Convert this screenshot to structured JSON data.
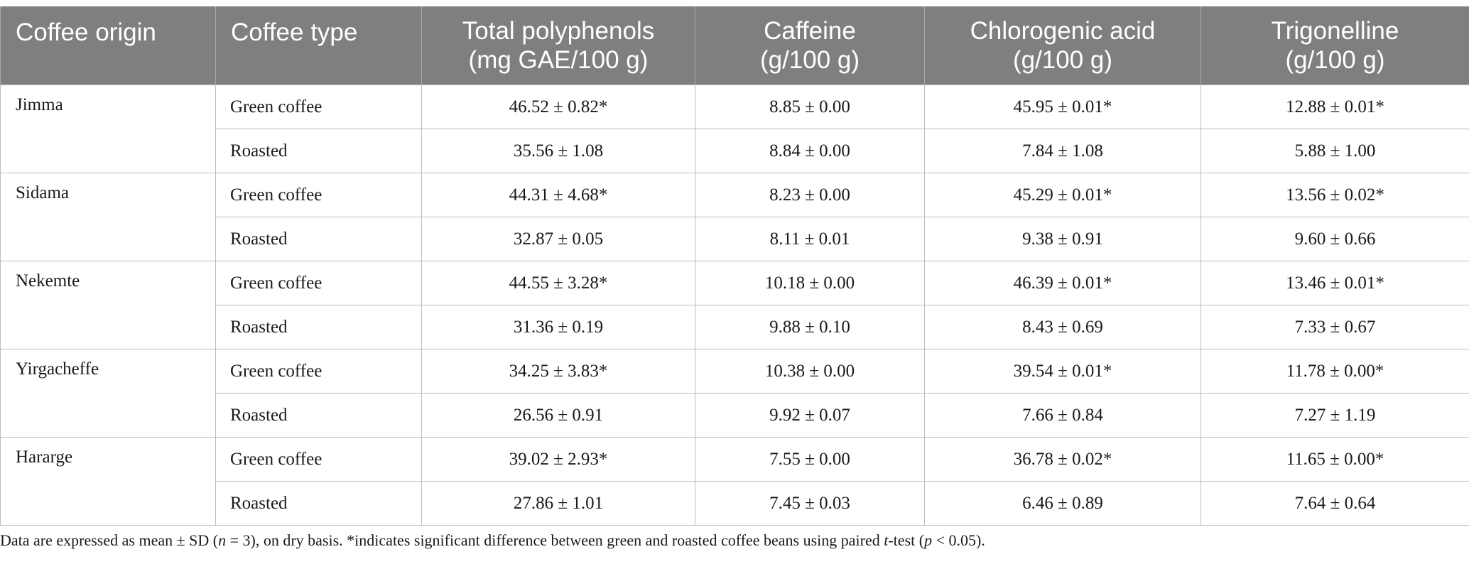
{
  "table": {
    "headers": [
      {
        "line1": "Coffee origin",
        "line2": ""
      },
      {
        "line1": "Coffee type",
        "line2": ""
      },
      {
        "line1": "Total polyphenols",
        "line2": "(mg GAE/100 g)"
      },
      {
        "line1": "Caffeine",
        "line2": "(g/100 g)"
      },
      {
        "line1": "Chlorogenic acid",
        "line2": "(g/100 g)"
      },
      {
        "line1": "Trigonelline",
        "line2": "(g/100 g)"
      }
    ],
    "groups": [
      {
        "origin": "Jimma",
        "rows": [
          {
            "type": "Green coffee",
            "polyphenols": "46.52 ± 0.82*",
            "caffeine": "8.85 ± 0.00",
            "chlorogenic": "45.95 ± 0.01*",
            "trigonelline": "12.88 ± 0.01*"
          },
          {
            "type": "Roasted",
            "polyphenols": "35.56 ± 1.08",
            "caffeine": "8.84 ± 0.00",
            "chlorogenic": "7.84 ± 1.08",
            "trigonelline": "5.88 ± 1.00"
          }
        ]
      },
      {
        "origin": "Sidama",
        "rows": [
          {
            "type": "Green coffee",
            "polyphenols": "44.31 ± 4.68*",
            "caffeine": "8.23 ± 0.00",
            "chlorogenic": "45.29 ± 0.01*",
            "trigonelline": "13.56 ± 0.02*"
          },
          {
            "type": "Roasted",
            "polyphenols": "32.87 ± 0.05",
            "caffeine": "8.11 ± 0.01",
            "chlorogenic": "9.38 ± 0.91",
            "trigonelline": "9.60 ± 0.66"
          }
        ]
      },
      {
        "origin": "Nekemte",
        "rows": [
          {
            "type": "Green coffee",
            "polyphenols": "44.55 ± 3.28*",
            "caffeine": "10.18 ± 0.00",
            "chlorogenic": "46.39 ± 0.01*",
            "trigonelline": "13.46 ± 0.01*"
          },
          {
            "type": "Roasted",
            "polyphenols": "31.36 ± 0.19",
            "caffeine": "9.88 ± 0.10",
            "chlorogenic": "8.43 ± 0.69",
            "trigonelline": "7.33 ± 0.67"
          }
        ]
      },
      {
        "origin": "Yirgacheffe",
        "rows": [
          {
            "type": "Green coffee",
            "polyphenols": "34.25 ± 3.83*",
            "caffeine": "10.38 ± 0.00",
            "chlorogenic": "39.54 ± 0.01*",
            "trigonelline": "11.78 ± 0.00*"
          },
          {
            "type": "Roasted",
            "polyphenols": "26.56 ± 0.91",
            "caffeine": "9.92 ± 0.07",
            "chlorogenic": "7.66 ± 0.84",
            "trigonelline": "7.27 ± 1.19"
          }
        ]
      },
      {
        "origin": "Hararge",
        "rows": [
          {
            "type": "Green coffee",
            "polyphenols": "39.02 ± 2.93*",
            "caffeine": "7.55 ± 0.00",
            "chlorogenic": "36.78 ± 0.02*",
            "trigonelline": "11.65 ± 0.00*"
          },
          {
            "type": "Roasted",
            "polyphenols": "27.86 ± 1.01",
            "caffeine": "7.45 ± 0.03",
            "chlorogenic": "6.46 ± 0.89",
            "trigonelline": "7.64 ± 0.64"
          }
        ]
      }
    ]
  },
  "footnote": {
    "part1": "Data are expressed as mean ± SD (",
    "n_var": "n",
    "part2": " = 3), on dry basis. *indicates significant difference between green and roasted coffee beans using paired ",
    "t_var": "t",
    "part3": "-test (",
    "p_var": "p",
    "part4": " < 0.05)."
  },
  "colors": {
    "header_bg": "#7f7f7e",
    "header_text": "#ffffff",
    "border": "#bdbdbd"
  }
}
